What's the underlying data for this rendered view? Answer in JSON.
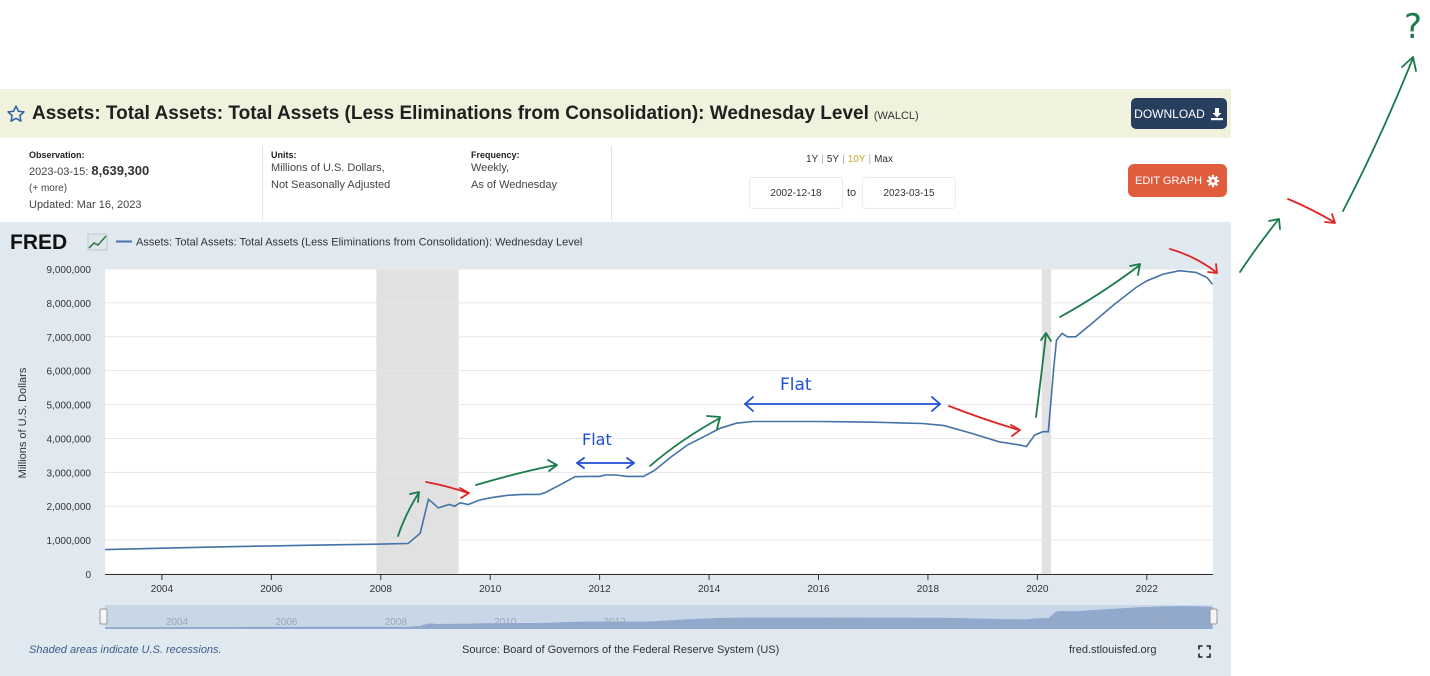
{
  "header": {
    "title": "Assets: Total Assets: Total Assets (Less Eliminations from Consolidation): Wednesday Level",
    "series_id": "(WALCL)",
    "download_label": "DOWNLOAD",
    "edit_label": "EDIT GRAPH"
  },
  "meta": {
    "observation_label": "Observation:",
    "observation_date": "2023-03-15:",
    "observation_value": "8,639,300",
    "more": "(+ more)",
    "updated": "Updated: Mar 16, 2023",
    "units_label": "Units:",
    "units_line1": "Millions of U.S. Dollars,",
    "units_line2": "Not Seasonally Adjusted",
    "frequency_label": "Frequency:",
    "frequency_line1": "Weekly,",
    "frequency_line2": "As of Wednesday",
    "ranges": [
      "1Y",
      "5Y",
      "10Y",
      "Max"
    ],
    "active_range": "10Y",
    "start_date": "2002-12-18",
    "to_label": "to",
    "end_date": "2023-03-15"
  },
  "footer": {
    "note": "Shaded areas indicate U.S. recessions.",
    "source": "Source: Board of Governors of the Federal Reserve System (US)",
    "url": "fred.stlouisfed.org"
  },
  "colors": {
    "line": "#4572a7",
    "recession": "#e1e1e1",
    "download": "#283e5f",
    "edit": "#e15b3d",
    "annotation_green": "#1b7a4a",
    "annotation_red": "#e02424",
    "annotation_blue": "#1f4fd6"
  },
  "annotations": {
    "flat_1": "Flat",
    "flat_2": "Flat",
    "question": "?"
  },
  "chart_data": {
    "type": "line",
    "logo": "FRED",
    "legend": "Assets: Total Assets: Total Assets (Less Eliminations from Consolidation): Wednesday Level",
    "ylabel": "Millions of U.S. Dollars",
    "xlim": [
      2002.96,
      2023.21
    ],
    "ylim": [
      0,
      9000000
    ],
    "yticks": [
      0,
      1000000,
      2000000,
      3000000,
      4000000,
      5000000,
      6000000,
      7000000,
      8000000,
      9000000
    ],
    "ytick_labels": [
      "0",
      "1,000,000",
      "2,000,000",
      "3,000,000",
      "4,000,000",
      "5,000,000",
      "6,000,000",
      "7,000,000",
      "8,000,000",
      "9,000,000"
    ],
    "xticks": [
      2004,
      2006,
      2008,
      2010,
      2012,
      2014,
      2016,
      2018,
      2020,
      2022
    ],
    "xtick_labels": [
      "2004",
      "2006",
      "2008",
      "2010",
      "2012",
      "2014",
      "2016",
      "2018",
      "2020",
      "2022"
    ],
    "recessions": [
      [
        2007.92,
        2009.42
      ],
      [
        2020.08,
        2020.25
      ]
    ],
    "series": [
      {
        "name": "WALCL",
        "x": [
          2002.96,
          2004.0,
          2005.0,
          2006.0,
          2007.0,
          2007.9,
          2008.5,
          2008.72,
          2008.87,
          2008.95,
          2009.05,
          2009.15,
          2009.25,
          2009.35,
          2009.45,
          2009.6,
          2009.8,
          2010.0,
          2010.3,
          2010.6,
          2010.9,
          2011.0,
          2011.3,
          2011.55,
          2011.8,
          2012.0,
          2012.1,
          2012.3,
          2012.5,
          2012.8,
          2013.0,
          2013.3,
          2013.6,
          2013.9,
          2014.2,
          2014.5,
          2014.8,
          2015.0,
          2015.5,
          2016.0,
          2016.5,
          2017.0,
          2017.5,
          2017.9,
          2018.3,
          2018.8,
          2019.3,
          2019.7,
          2019.8,
          2019.95,
          2020.1,
          2020.2,
          2020.3,
          2020.35,
          2020.45,
          2020.55,
          2020.7,
          2021.0,
          2021.4,
          2021.8,
          2022.0,
          2022.3,
          2022.6,
          2022.9,
          2023.1,
          2023.2
        ],
        "y": [
          720000,
          760000,
          800000,
          830000,
          860000,
          880000,
          900000,
          1200000,
          2200000,
          2100000,
          1950000,
          2000000,
          2050000,
          2000000,
          2100000,
          2050000,
          2180000,
          2250000,
          2320000,
          2350000,
          2350000,
          2400000,
          2650000,
          2870000,
          2880000,
          2880000,
          2920000,
          2920000,
          2880000,
          2880000,
          3050000,
          3450000,
          3800000,
          4050000,
          4300000,
          4450000,
          4500000,
          4500000,
          4500000,
          4500000,
          4490000,
          4480000,
          4460000,
          4440000,
          4380000,
          4150000,
          3900000,
          3800000,
          3760000,
          4100000,
          4200000,
          4200000,
          6100000,
          6900000,
          7100000,
          7000000,
          7000000,
          7400000,
          7950000,
          8450000,
          8650000,
          8850000,
          8950000,
          8900000,
          8750000,
          8550000
        ]
      }
    ]
  }
}
